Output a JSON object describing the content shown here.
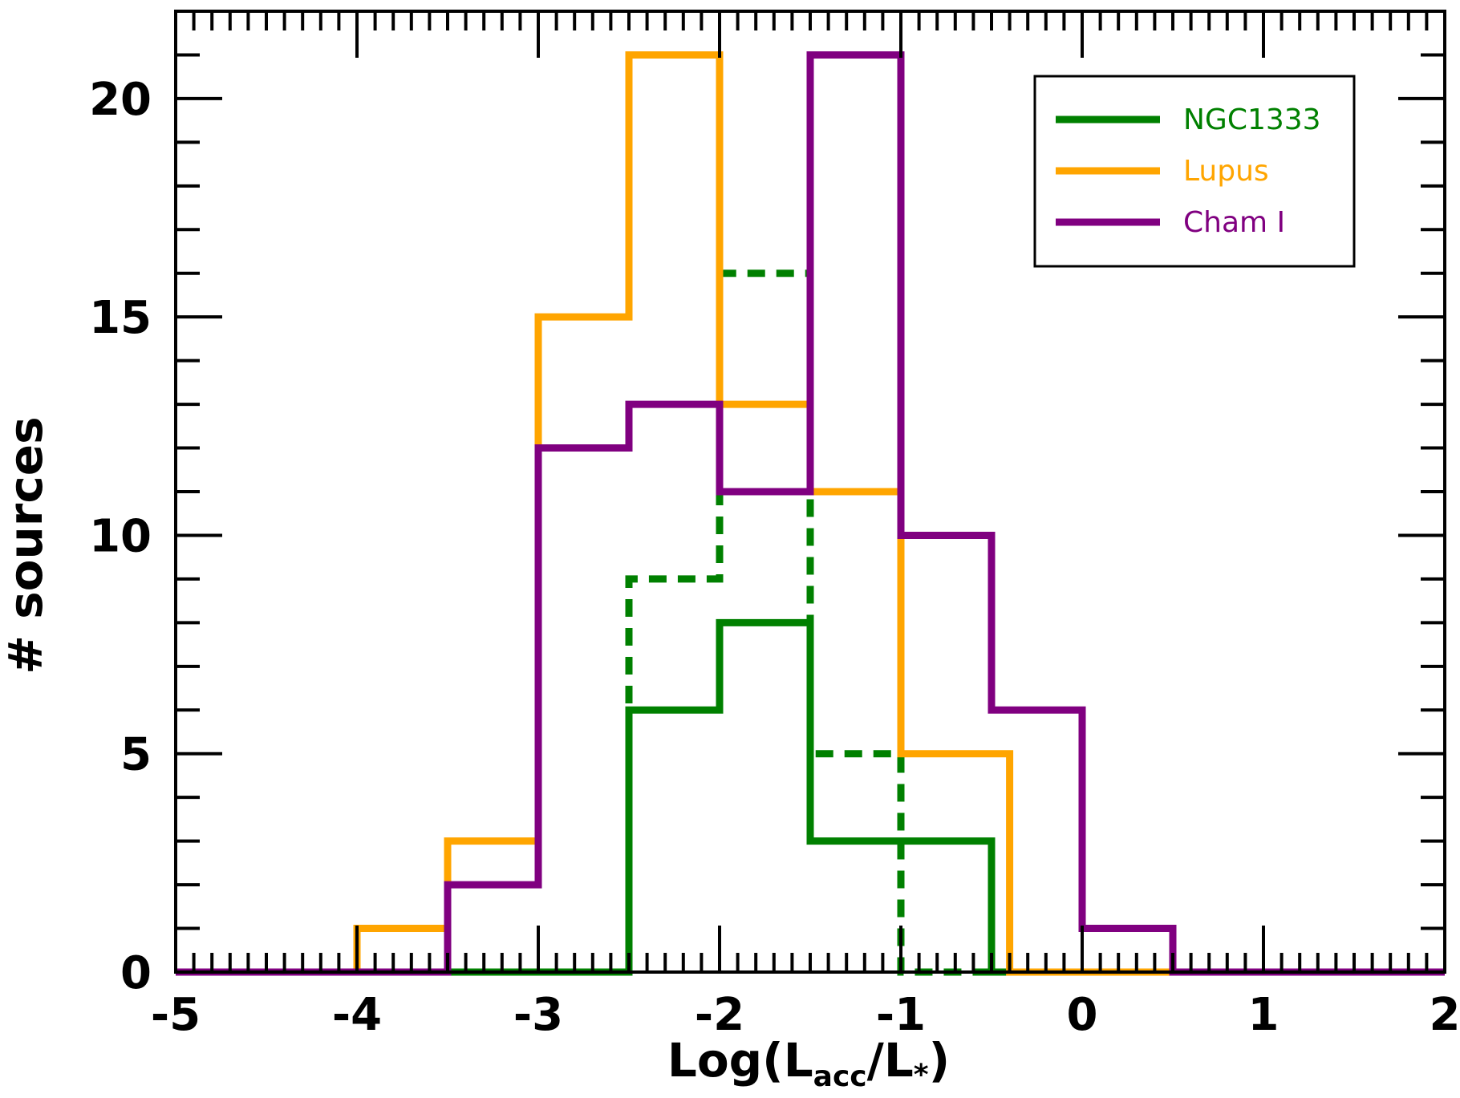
{
  "chart_data": {
    "type": "line",
    "subtype": "step-histogram",
    "title": "",
    "xlabel": {
      "main": "Log(L",
      "sub1": "acc",
      "mid": "/L",
      "sub2": "*",
      "end": ")"
    },
    "ylabel": "# sources",
    "xlim": [
      -5,
      2
    ],
    "ylim": [
      0,
      22
    ],
    "xticks": [
      -5,
      -4,
      -3,
      -2,
      -1,
      0,
      1,
      2
    ],
    "xtick_labels": [
      "-5",
      "-4",
      "-3",
      "-2",
      "-1",
      "0",
      "1",
      "2"
    ],
    "yticks": [
      0,
      5,
      10,
      15,
      20
    ],
    "ytick_labels": [
      "0",
      "5",
      "10",
      "15",
      "20"
    ],
    "grid": false,
    "legend_position": "top-right",
    "bin_edges": [
      -5.0,
      -4.5,
      -4.0,
      -3.5,
      -3.0,
      -2.5,
      -2.0,
      -1.5,
      -1.0,
      -0.5,
      0.0,
      0.5,
      1.0,
      1.5,
      2.0
    ],
    "series": [
      {
        "name": "NGC1333",
        "color": "#008000",
        "style": "solid",
        "legend": true,
        "values": [
          0,
          0,
          0,
          0,
          0,
          6,
          8,
          3,
          3,
          0,
          0,
          0,
          0,
          0
        ]
      },
      {
        "name": "Lupus",
        "color": "#FFA500",
        "style": "solid",
        "legend": true,
        "values": [
          0,
          0,
          1,
          3,
          15,
          21,
          13,
          11,
          5,
          0,
          0,
          0,
          0,
          0
        ],
        "bin_edges_override": [
          -5.0,
          -4.5,
          -4.0,
          -3.5,
          -3.0,
          -2.5,
          -2.0,
          -1.5,
          -1.0,
          -0.4,
          0.0,
          0.5,
          1.0,
          1.5,
          2.0
        ]
      },
      {
        "name": "Cham I",
        "color": "#800080",
        "style": "solid",
        "legend": true,
        "values": [
          0,
          0,
          0,
          2,
          12,
          13,
          11,
          21,
          10,
          6,
          1,
          0,
          0,
          0
        ]
      },
      {
        "name": "",
        "color": "#008000",
        "style": "dashed",
        "legend": false,
        "values": [
          0,
          0,
          0,
          0,
          0,
          9,
          16,
          5,
          0,
          0,
          0,
          0,
          0,
          0
        ]
      }
    ]
  }
}
